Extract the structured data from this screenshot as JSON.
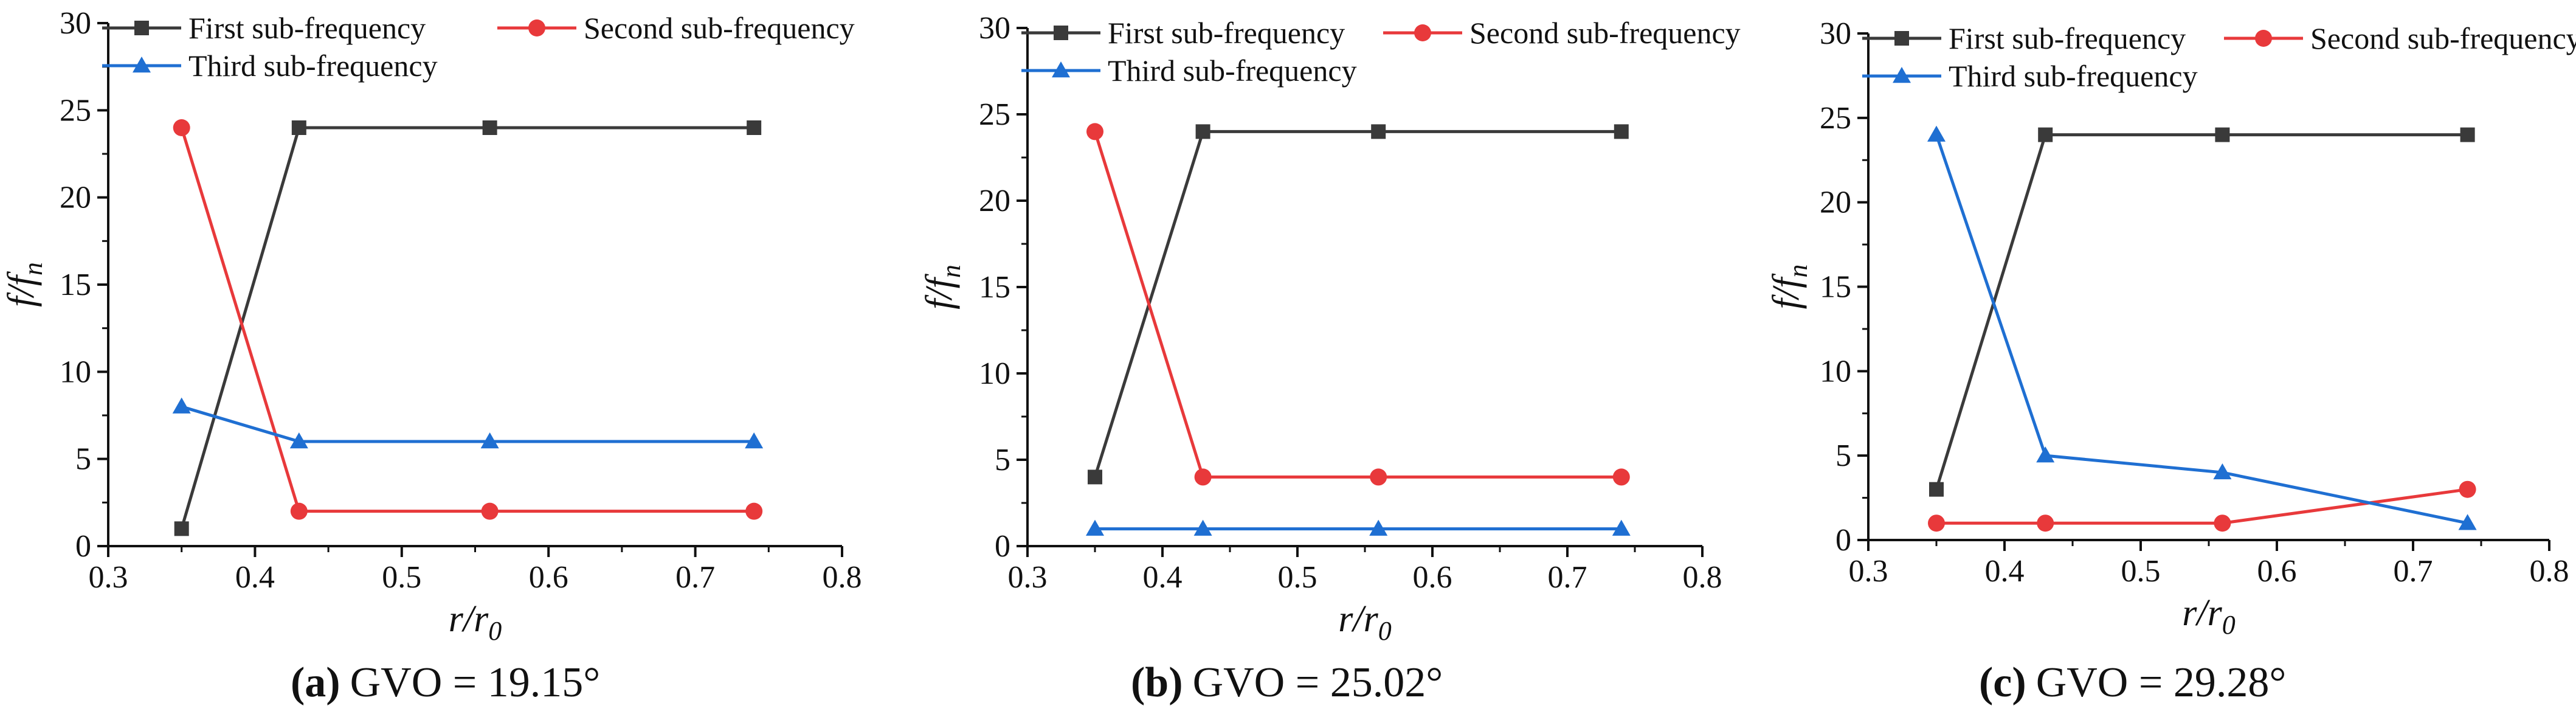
{
  "figure": {
    "panels": [
      {
        "label": "(a)",
        "caption": "GVO = 19.15°"
      },
      {
        "label": "(b)",
        "caption": "GVO = 25.02°"
      },
      {
        "label": "(c)",
        "caption": "GVO = 29.28°"
      }
    ]
  },
  "chart_data": [
    {
      "type": "line",
      "title": "GVO = 19.15°",
      "panel_label": "(a)",
      "xlabel": "r/r0",
      "ylabel": "f/fn",
      "xlim": [
        0.3,
        0.8
      ],
      "ylim": [
        0,
        30
      ],
      "xticks": [
        "0.3",
        "0.4",
        "0.5",
        "0.6",
        "0.7",
        "0.8"
      ],
      "yticks": [
        "0",
        "5",
        "10",
        "15",
        "20",
        "25",
        "30"
      ],
      "x": [
        0.35,
        0.43,
        0.56,
        0.74
      ],
      "legend_position": "top",
      "series": [
        {
          "name": "First sub-frequency",
          "color": "#3a3a3a",
          "marker": "square",
          "values": [
            1,
            24,
            24,
            24
          ]
        },
        {
          "name": "Second sub-frequency",
          "color": "#e8393b",
          "marker": "circle",
          "values": [
            24,
            2,
            2,
            2
          ]
        },
        {
          "name": "Third sub-frequency",
          "color": "#1f6fd2",
          "marker": "triangle",
          "values": [
            8,
            6,
            6,
            6
          ]
        }
      ]
    },
    {
      "type": "line",
      "title": "GVO = 25.02°",
      "panel_label": "(b)",
      "xlabel": "r/r0",
      "ylabel": "f/fn",
      "xlim": [
        0.3,
        0.8
      ],
      "ylim": [
        0,
        30
      ],
      "xticks": [
        "0.3",
        "0.4",
        "0.5",
        "0.6",
        "0.7",
        "0.8"
      ],
      "yticks": [
        "0",
        "5",
        "10",
        "15",
        "20",
        "25",
        "30"
      ],
      "x": [
        0.35,
        0.43,
        0.56,
        0.74
      ],
      "legend_position": "top",
      "series": [
        {
          "name": "First sub-frequency",
          "color": "#3a3a3a",
          "marker": "square",
          "values": [
            4,
            24,
            24,
            24
          ]
        },
        {
          "name": "Second sub-frequency",
          "color": "#e8393b",
          "marker": "circle",
          "values": [
            24,
            4,
            4,
            4
          ]
        },
        {
          "name": "Third sub-frequency",
          "color": "#1f6fd2",
          "marker": "triangle",
          "values": [
            1,
            1,
            1,
            1
          ]
        }
      ]
    },
    {
      "type": "line",
      "title": "GVO = 29.28°",
      "panel_label": "(c)",
      "xlabel": "r/r0",
      "ylabel": "f/fn",
      "xlim": [
        0.3,
        0.8
      ],
      "ylim": [
        0,
        30
      ],
      "xticks": [
        "0.3",
        "0.4",
        "0.5",
        "0.6",
        "0.7",
        "0.8"
      ],
      "yticks": [
        "0",
        "5",
        "10",
        "15",
        "20",
        "25",
        "30"
      ],
      "x": [
        0.35,
        0.43,
        0.56,
        0.74
      ],
      "legend_position": "top",
      "series": [
        {
          "name": "First sub-frequency",
          "color": "#3a3a3a",
          "marker": "square",
          "values": [
            3,
            24,
            24,
            24
          ]
        },
        {
          "name": "Second sub-frequency",
          "color": "#e8393b",
          "marker": "circle",
          "values": [
            1,
            1,
            1,
            3
          ]
        },
        {
          "name": "Third sub-frequency",
          "color": "#1f6fd2",
          "marker": "triangle",
          "values": [
            24,
            5,
            4,
            1
          ]
        }
      ]
    }
  ]
}
